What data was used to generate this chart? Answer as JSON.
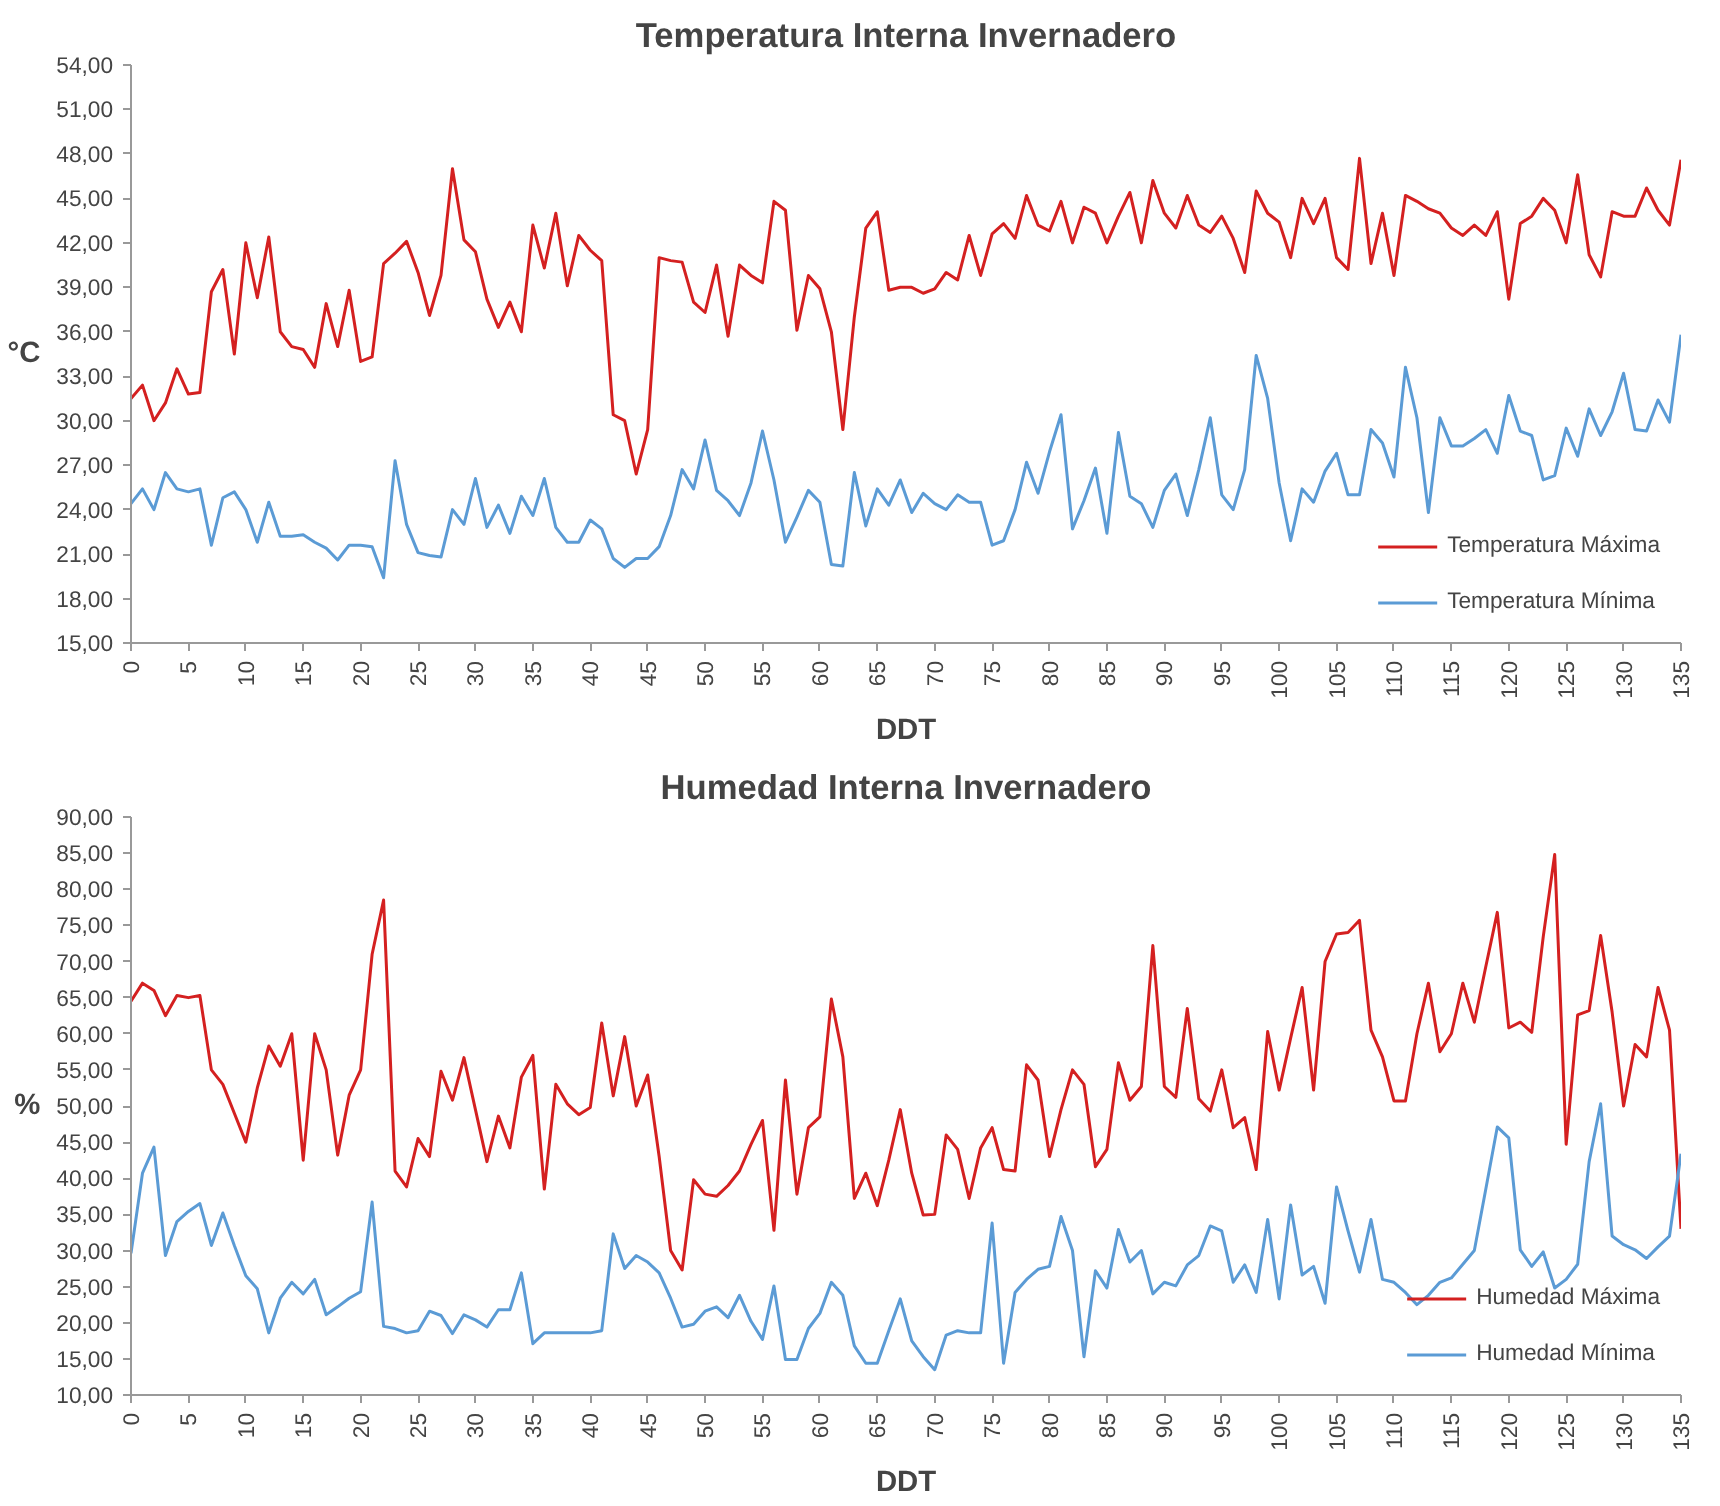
{
  "chart_data": [
    {
      "type": "line",
      "title": "Temperatura Interna Invernadero",
      "xlabel": "DDT",
      "ylabel": "°C",
      "legend": "bottom right",
      "grid": false,
      "marker": "none",
      "line_style": "solid",
      "xlim": [
        0,
        135
      ],
      "xticks": [
        0,
        5,
        10,
        15,
        20,
        25,
        30,
        35,
        40,
        45,
        50,
        55,
        60,
        65,
        70,
        75,
        80,
        85,
        90,
        95,
        100,
        105,
        110,
        115,
        120,
        125,
        130,
        135
      ],
      "ylim": [
        15,
        54
      ],
      "yticks": [
        {
          "value": 15,
          "label": "15,00"
        },
        {
          "value": 18,
          "label": "18,00"
        },
        {
          "value": 21,
          "label": "21,00"
        },
        {
          "value": 24,
          "label": "24,00"
        },
        {
          "value": 27,
          "label": "27,00"
        },
        {
          "value": 30,
          "label": "30,00"
        },
        {
          "value": 33,
          "label": "33,00"
        },
        {
          "value": 36,
          "label": "36,00"
        },
        {
          "value": 39,
          "label": "39,00"
        },
        {
          "value": 42,
          "label": "42,00"
        },
        {
          "value": 45,
          "label": "45,00"
        },
        {
          "value": 48,
          "label": "48,00"
        },
        {
          "value": 51,
          "label": "51,00"
        },
        {
          "value": 54,
          "label": "54,00"
        }
      ],
      "x": [
        0,
        1,
        2,
        3,
        4,
        5,
        6,
        7,
        8,
        9,
        10,
        11,
        12,
        13,
        14,
        15,
        16,
        17,
        18,
        19,
        20,
        21,
        22,
        23,
        24,
        25,
        26,
        27,
        28,
        29,
        30,
        31,
        32,
        33,
        34,
        35,
        36,
        37,
        38,
        39,
        40,
        41,
        42,
        43,
        44,
        45,
        46,
        47,
        48,
        49,
        50,
        51,
        52,
        53,
        54,
        55,
        56,
        57,
        58,
        59,
        60,
        61,
        62,
        63,
        64,
        65,
        66,
        67,
        68,
        69,
        70,
        71,
        72,
        73,
        74,
        75,
        76,
        77,
        78,
        79,
        80,
        81,
        82,
        83,
        84,
        85,
        86,
        87,
        88,
        89,
        90,
        91,
        92,
        93,
        94,
        95,
        96,
        97,
        98,
        99,
        100,
        101,
        102,
        103,
        104,
        105,
        106,
        107,
        108,
        109,
        110,
        111,
        112,
        113,
        114,
        115,
        116,
        117,
        118,
        119,
        120,
        121,
        122,
        123,
        124,
        125,
        126,
        127,
        128,
        129,
        130,
        131,
        132,
        133,
        134,
        135
      ],
      "series": [
        {
          "name": "Temperatura Máxima",
          "color": "#d42020",
          "values": [
            31.5,
            32.4,
            30,
            31.2,
            33.5,
            31.8,
            31.9,
            38.7,
            40.2,
            34.5,
            42,
            38.3,
            42.4,
            36,
            35,
            34.8,
            33.6,
            37.9,
            35,
            38.8,
            34,
            34.3,
            40.6,
            41.3,
            42.1,
            40,
            37.1,
            39.8,
            47,
            42.2,
            41.4,
            38.2,
            36.3,
            38,
            36,
            43.2,
            40.3,
            44,
            39.1,
            42.5,
            41.5,
            40.8,
            30.4,
            30,
            26.4,
            29.4,
            41,
            40.8,
            40.7,
            38,
            37.3,
            40.5,
            35.7,
            40.5,
            39.8,
            39.3,
            44.8,
            44.2,
            36.1,
            39.8,
            38.9,
            36,
            29.4,
            37,
            43,
            44.1,
            38.8,
            39,
            39,
            38.6,
            38.9,
            40,
            39.5,
            42.5,
            39.8,
            42.6,
            43.3,
            42.3,
            45.2,
            43.2,
            42.8,
            44.8,
            42,
            44.4,
            44,
            42,
            43.8,
            45.4,
            42,
            46.2,
            44,
            43,
            45.2,
            43.2,
            42.7,
            43.8,
            42.3,
            40,
            45.5,
            44,
            43.4,
            41,
            45,
            43.3,
            45,
            41,
            40.2,
            47.7,
            40.6,
            44,
            39.8,
            45.2,
            44.8,
            44.3,
            44,
            43,
            42.5,
            43.2,
            42.5,
            44.1,
            38.2,
            43.3,
            43.8,
            45,
            44.2,
            42,
            46.6,
            41.2,
            39.7,
            44.1,
            43.8,
            43.8,
            45.7,
            44.2,
            43.2,
            47.6
          ]
        },
        {
          "name": "Temperatura Mínima",
          "color": "#5b9bd5",
          "values": [
            24.4,
            25.4,
            24,
            26.5,
            25.4,
            25.2,
            25.4,
            21.6,
            24.8,
            25.2,
            24,
            21.8,
            24.5,
            22.2,
            22.2,
            22.3,
            21.8,
            21.4,
            20.6,
            21.6,
            21.6,
            21.5,
            19.4,
            27.3,
            23,
            21.1,
            20.9,
            20.8,
            24,
            23,
            26.1,
            22.8,
            24.3,
            22.4,
            24.9,
            23.6,
            26.1,
            22.8,
            21.8,
            21.8,
            23.3,
            22.7,
            20.7,
            20.1,
            20.7,
            20.7,
            21.5,
            23.6,
            26.7,
            25.4,
            28.7,
            25.3,
            24.6,
            23.6,
            25.8,
            29.3,
            26,
            21.8,
            23.5,
            25.3,
            24.5,
            20.3,
            20.2,
            26.5,
            22.9,
            25.4,
            24.3,
            26,
            23.8,
            25.1,
            24.4,
            24,
            25,
            24.5,
            24.5,
            21.6,
            21.9,
            24,
            27.2,
            25.1,
            27.9,
            30.4,
            22.7,
            24.6,
            26.8,
            22.4,
            29.2,
            24.9,
            24.4,
            22.8,
            25.3,
            26.4,
            23.6,
            26.7,
            30.2,
            25,
            24,
            26.7,
            34.4,
            31.5,
            25.8,
            21.9,
            25.4,
            24.5,
            26.6,
            27.8,
            25,
            25,
            29.4,
            28.5,
            26.2,
            33.6,
            30.2,
            23.8,
            30.2,
            28.3,
            28.3,
            28.8,
            29.4,
            27.8,
            31.7,
            29.3,
            29,
            26,
            26.3,
            29.5,
            27.6,
            30.8,
            29,
            30.6,
            33.2,
            29.4,
            29.3,
            31.4,
            29.9,
            35.8
          ]
        }
      ]
    },
    {
      "type": "line",
      "title": "Humedad Interna Invernadero",
      "xlabel": "DDT",
      "ylabel": "%",
      "legend": "bottom right",
      "grid": false,
      "marker": "none",
      "line_style": "solid",
      "xlim": [
        0,
        135
      ],
      "xticks": [
        0,
        5,
        10,
        15,
        20,
        25,
        30,
        35,
        40,
        45,
        50,
        55,
        60,
        65,
        70,
        75,
        80,
        85,
        90,
        95,
        100,
        105,
        110,
        115,
        120,
        125,
        130,
        135
      ],
      "ylim": [
        10,
        90
      ],
      "yticks": [
        {
          "value": 10,
          "label": "10,00"
        },
        {
          "value": 15,
          "label": "15,00"
        },
        {
          "value": 20,
          "label": "20,00"
        },
        {
          "value": 25,
          "label": "25,00"
        },
        {
          "value": 30,
          "label": "30,00"
        },
        {
          "value": 35,
          "label": "35,00"
        },
        {
          "value": 40,
          "label": "40,00"
        },
        {
          "value": 45,
          "label": "45,00"
        },
        {
          "value": 50,
          "label": "50,00"
        },
        {
          "value": 55,
          "label": "55,00"
        },
        {
          "value": 60,
          "label": "60,00"
        },
        {
          "value": 65,
          "label": "65,00"
        },
        {
          "value": 70,
          "label": "70,00"
        },
        {
          "value": 75,
          "label": "75,00"
        },
        {
          "value": 80,
          "label": "80,00"
        },
        {
          "value": 85,
          "label": "85,00"
        },
        {
          "value": 90,
          "label": "90,00"
        }
      ],
      "x": [
        0,
        1,
        2,
        3,
        4,
        5,
        6,
        7,
        8,
        9,
        10,
        11,
        12,
        13,
        14,
        15,
        16,
        17,
        18,
        19,
        20,
        21,
        22,
        23,
        24,
        25,
        26,
        27,
        28,
        29,
        30,
        31,
        32,
        33,
        34,
        35,
        36,
        37,
        38,
        39,
        40,
        41,
        42,
        43,
        44,
        45,
        46,
        47,
        48,
        49,
        50,
        51,
        52,
        53,
        54,
        55,
        56,
        57,
        58,
        59,
        60,
        61,
        62,
        63,
        64,
        65,
        66,
        67,
        68,
        69,
        70,
        71,
        72,
        73,
        74,
        75,
        76,
        77,
        78,
        79,
        80,
        81,
        82,
        83,
        84,
        85,
        86,
        87,
        88,
        89,
        90,
        91,
        92,
        93,
        94,
        95,
        96,
        97,
        98,
        99,
        100,
        101,
        102,
        103,
        104,
        105,
        106,
        107,
        108,
        109,
        110,
        111,
        112,
        113,
        114,
        115,
        116,
        117,
        118,
        119,
        120,
        121,
        122,
        123,
        124,
        125,
        126,
        127,
        128,
        129,
        130,
        131,
        132,
        133,
        134,
        135
      ],
      "series": [
        {
          "name": "Humedad Máxima",
          "color": "#d42020",
          "values": [
            64.5,
            67,
            66,
            62.5,
            65.3,
            65,
            65.3,
            55,
            53,
            49,
            45,
            52.5,
            58.3,
            55.5,
            60,
            42.5,
            60,
            55,
            43.2,
            51.5,
            55,
            71,
            78.5,
            41,
            38.8,
            45.5,
            43,
            54.8,
            50.8,
            56.7,
            49.5,
            42.3,
            48.6,
            44.2,
            54,
            57,
            38.5,
            53,
            50.3,
            48.8,
            49.8,
            61.5,
            51.4,
            59.6,
            50,
            54.3,
            43,
            30,
            27.3,
            39.8,
            37.8,
            37.5,
            39,
            41,
            44.7,
            48,
            32.8,
            53.6,
            37.8,
            47,
            48.5,
            64.8,
            56.8,
            37.2,
            40.7,
            36.2,
            42.5,
            49.5,
            40.7,
            34.9,
            35,
            46,
            44,
            37.2,
            44.2,
            47,
            41.2,
            41,
            55.7,
            53.6,
            43,
            49.5,
            55,
            53,
            41.6,
            44,
            56,
            50.8,
            52.7,
            72.2,
            52.7,
            51.2,
            63.5,
            51,
            49.3,
            55,
            47,
            48.4,
            41.2,
            60.3,
            52.2,
            59.4,
            66.4,
            52.2,
            70,
            73.8,
            74,
            75.7,
            60.5,
            56.8,
            50.7,
            50.7,
            60,
            67,
            57.5,
            60,
            67,
            61.6,
            69.3,
            76.8,
            60.8,
            61.6,
            60.2,
            73.4,
            84.8,
            44.7,
            62.6,
            63.2,
            73.6,
            63,
            50,
            58.5,
            56.8,
            66.4,
            60.5,
            33
          ]
        },
        {
          "name": "Humedad Mínima",
          "color": "#5b9bd5",
          "values": [
            29.6,
            40.7,
            44.3,
            29.3,
            34,
            35.4,
            36.5,
            30.7,
            35.2,
            30.7,
            26.5,
            24.7,
            18.6,
            23.4,
            25.6,
            24,
            26,
            21.1,
            22.2,
            23.4,
            24.3,
            36.7,
            19.5,
            19.2,
            18.6,
            18.9,
            21.6,
            21,
            18.5,
            21.1,
            20.4,
            19.4,
            21.8,
            21.8,
            26.9,
            17.1,
            18.6,
            18.6,
            18.6,
            18.6,
            18.6,
            18.9,
            32.3,
            27.5,
            29.3,
            28.4,
            26.9,
            23.4,
            19.4,
            19.8,
            21.6,
            22.2,
            20.7,
            23.8,
            20.2,
            17.7,
            25.1,
            14.9,
            14.9,
            19.2,
            21.3,
            25.6,
            23.8,
            16.8,
            14.4,
            14.4,
            18.9,
            23.3,
            17.5,
            15.3,
            13.5,
            18.3,
            18.9,
            18.6,
            18.6,
            33.8,
            14.4,
            24.2,
            26,
            27.4,
            27.8,
            34.7,
            30,
            15.3,
            27.2,
            24.8,
            32.9,
            28.4,
            30,
            24,
            25.6,
            25.1,
            28,
            29.3,
            33.4,
            32.7,
            25.6,
            28,
            24.2,
            34.3,
            23.3,
            36.3,
            26.6,
            27.8,
            22.7,
            38.8,
            32.7,
            27,
            34.3,
            26,
            25.6,
            24.2,
            22.5,
            23.8,
            25.6,
            26.2,
            28.1,
            30,
            38.5,
            47.1,
            45.6,
            30.1,
            27.8,
            29.8,
            24.8,
            26,
            28.1,
            42.3,
            50.3,
            32,
            30.8,
            30.1,
            28.9,
            30.5,
            32,
            43.4
          ]
        }
      ]
    }
  ]
}
